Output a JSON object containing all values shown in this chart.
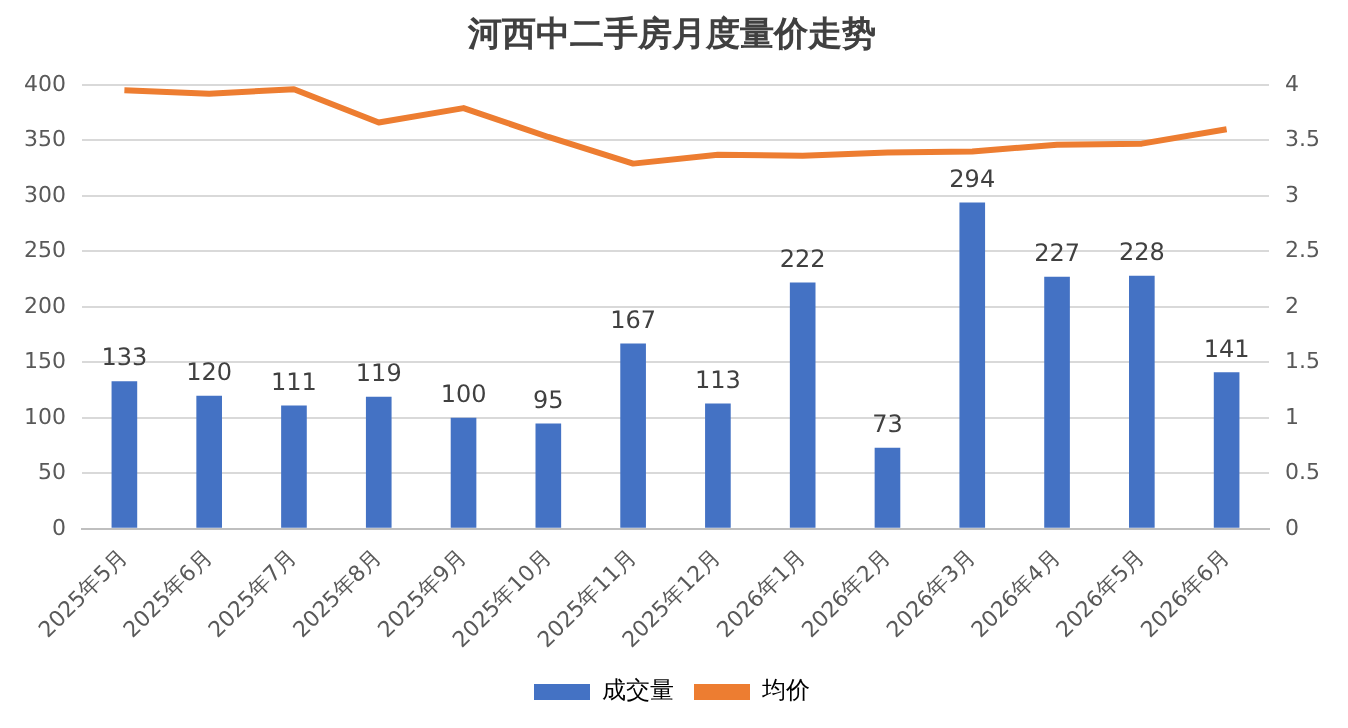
{
  "chart_data": {
    "type": "bar",
    "title": "河西中二手房月度量价走势",
    "categories": [
      "2025年5月",
      "2025年6月",
      "2025年7月",
      "2025年8月",
      "2025年9月",
      "2025年10月",
      "2025年11月",
      "2025年12月",
      "2026年1月",
      "2026年2月",
      "2026年3月",
      "2026年4月",
      "2026年5月",
      "2026年6月"
    ],
    "series": [
      {
        "name": "成交量",
        "color": "#4472c4",
        "values": [
          133,
          120,
          111,
          119,
          100,
          95,
          167,
          113,
          222,
          73,
          294,
          227,
          228,
          141
        ],
        "value_labels": [
          "133",
          "120",
          "111",
          "119",
          "100",
          "95",
          "167",
          "113",
          "222",
          "73",
          "294",
          "227",
          "228",
          "141"
        ]
      },
      {
        "name": "均价",
        "type": "line",
        "axis": "y2",
        "color": "#ed7d31",
        "values": [
          3.95,
          3.92,
          3.96,
          3.66,
          3.79,
          3.53,
          3.29,
          3.37,
          3.36,
          3.39,
          3.4,
          3.46,
          3.47,
          3.6
        ]
      }
    ],
    "ylim": [
      0,
      400
    ],
    "yticks": [
      0,
      50,
      100,
      150,
      200,
      250,
      300,
      350,
      400
    ],
    "y2lim": [
      0,
      4
    ],
    "y2ticks": [
      0,
      0.5,
      1,
      1.5,
      2,
      2.5,
      3,
      3.5,
      4
    ],
    "grid": "y",
    "legend": "bottom",
    "marker": "none"
  }
}
